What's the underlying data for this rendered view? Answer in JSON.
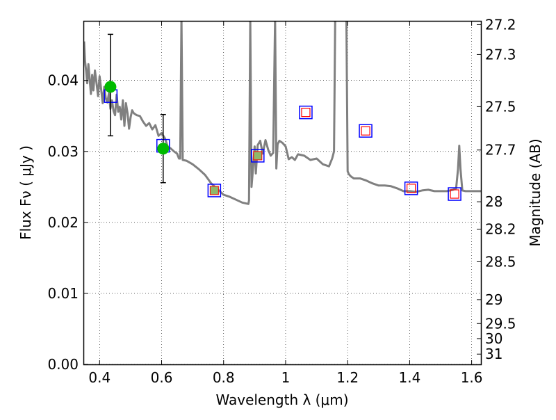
{
  "chart_data": {
    "type": "line",
    "xlabel": "Wavelength  λ (μm)",
    "ylabel": "Flux  Fν  ( μJy )",
    "y2label": "Magnitude (AB)",
    "xlim": [
      0.35,
      1.63
    ],
    "ylim": [
      0.0,
      0.0483
    ],
    "xticks": [
      {
        "value": 0.4,
        "label": "0.4"
      },
      {
        "value": 0.6,
        "label": "0.6"
      },
      {
        "value": 0.8,
        "label": "0.8"
      },
      {
        "value": 1.0,
        "label": "1"
      },
      {
        "value": 1.2,
        "label": "1.2"
      },
      {
        "value": 1.4,
        "label": "1.4"
      },
      {
        "value": 1.6,
        "label": "1.6"
      }
    ],
    "yticks": [
      {
        "value": 0.0,
        "label": "0.00"
      },
      {
        "value": 0.01,
        "label": "0.01"
      },
      {
        "value": 0.02,
        "label": "0.02"
      },
      {
        "value": 0.03,
        "label": "0.03"
      },
      {
        "value": 0.04,
        "label": "0.04"
      }
    ],
    "y2ticks": [
      {
        "value": 27.2,
        "label": "27.2"
      },
      {
        "value": 27.3,
        "label": "27.3"
      },
      {
        "value": 27.5,
        "label": "27.5"
      },
      {
        "value": 27.7,
        "label": "27.7"
      },
      {
        "value": 28.0,
        "label": "28"
      },
      {
        "value": 28.2,
        "label": "28.2"
      },
      {
        "value": 28.5,
        "label": "28.5"
      },
      {
        "value": 29.0,
        "label": "29"
      },
      {
        "value": 29.5,
        "label": "29.5"
      },
      {
        "value": 30.0,
        "label": "30"
      },
      {
        "value": 31.0,
        "label": "31"
      }
    ],
    "grid": true,
    "colors": {
      "spectrum": "#808080",
      "model_box": "#0000ff",
      "upper_box": "#ff0000",
      "observed": "#00bb00",
      "inner_fill": "#8fb86a"
    },
    "series": [
      {
        "kind": "spectrum",
        "x": [
          0.35,
          0.353,
          0.357,
          0.36,
          0.364,
          0.368,
          0.372,
          0.376,
          0.38,
          0.385,
          0.39,
          0.395,
          0.4,
          0.405,
          0.41,
          0.415,
          0.42,
          0.425,
          0.43,
          0.435,
          0.44,
          0.445,
          0.45,
          0.455,
          0.46,
          0.465,
          0.47,
          0.475,
          0.48,
          0.485,
          0.49,
          0.495,
          0.5,
          0.505,
          0.51,
          0.52,
          0.53,
          0.54,
          0.55,
          0.56,
          0.57,
          0.58,
          0.59,
          0.6,
          0.61,
          0.62,
          0.63,
          0.64,
          0.65,
          0.656,
          0.66,
          0.664,
          0.668,
          0.68,
          0.7,
          0.72,
          0.74,
          0.76,
          0.78,
          0.8,
          0.82,
          0.84,
          0.86,
          0.88,
          0.882,
          0.886,
          0.89,
          0.894,
          0.9,
          0.904,
          0.91,
          0.918,
          0.926,
          0.935,
          0.944,
          0.952,
          0.96,
          0.966,
          0.97,
          0.974,
          0.98,
          0.99,
          1.0,
          1.01,
          1.02,
          1.03,
          1.04,
          1.06,
          1.08,
          1.1,
          1.12,
          1.14,
          1.15,
          1.156,
          1.16,
          1.164,
          1.168,
          1.172,
          1.18,
          1.188,
          1.196,
          1.2,
          1.204,
          1.21,
          1.22,
          1.24,
          1.26,
          1.28,
          1.3,
          1.32,
          1.34,
          1.36,
          1.38,
          1.4,
          1.42,
          1.44,
          1.46,
          1.48,
          1.5,
          1.52,
          1.54,
          1.55,
          1.556,
          1.56,
          1.564,
          1.57,
          1.58,
          1.6,
          1.63
        ],
        "y": [
          0.0455,
          0.0428,
          0.0412,
          0.0396,
          0.0423,
          0.0402,
          0.0381,
          0.0408,
          0.0386,
          0.0414,
          0.0397,
          0.0378,
          0.0406,
          0.0388,
          0.0368,
          0.0391,
          0.0375,
          0.0369,
          0.0382,
          0.036,
          0.0372,
          0.0357,
          0.0351,
          0.038,
          0.0356,
          0.0363,
          0.0345,
          0.0372,
          0.0336,
          0.0368,
          0.0354,
          0.0332,
          0.0348,
          0.0358,
          0.0354,
          0.0351,
          0.035,
          0.0342,
          0.0336,
          0.034,
          0.0331,
          0.0337,
          0.0322,
          0.0326,
          0.0319,
          0.0307,
          0.0304,
          0.03,
          0.0297,
          0.029,
          0.029,
          0.0488,
          0.0288,
          0.0287,
          0.0282,
          0.0275,
          0.0267,
          0.0255,
          0.0247,
          0.0239,
          0.0236,
          0.0232,
          0.0228,
          0.0226,
          0.0231,
          0.0488,
          0.025,
          0.0272,
          0.0307,
          0.0269,
          0.0309,
          0.0315,
          0.0297,
          0.0316,
          0.0302,
          0.0294,
          0.0298,
          0.0488,
          0.0276,
          0.031,
          0.0315,
          0.0312,
          0.0307,
          0.0289,
          0.0292,
          0.0288,
          0.0296,
          0.0294,
          0.0288,
          0.029,
          0.0282,
          0.0279,
          0.029,
          0.03,
          0.0488,
          0.0488,
          0.0488,
          0.0488,
          0.0488,
          0.0488,
          0.0488,
          0.0272,
          0.0268,
          0.0265,
          0.0262,
          0.0262,
          0.0259,
          0.0255,
          0.0252,
          0.0252,
          0.0251,
          0.0248,
          0.0244,
          0.0244,
          0.0243,
          0.0245,
          0.0246,
          0.0244,
          0.0244,
          0.0244,
          0.0246,
          0.0248,
          0.0275,
          0.0308,
          0.0275,
          0.0245,
          0.0244,
          0.0244,
          0.0244
        ]
      },
      {
        "kind": "model-boxes",
        "x": [
          0.436,
          0.605,
          0.77,
          0.91,
          1.065,
          1.258,
          1.405,
          1.545
        ],
        "y": [
          0.0378,
          0.0308,
          0.0245,
          0.0294,
          0.0355,
          0.0329,
          0.0248,
          0.024
        ]
      },
      {
        "kind": "upper-limit-boxes",
        "x": [
          1.065,
          1.258,
          1.405,
          1.545
        ],
        "y": [
          0.0355,
          0.0329,
          0.0248,
          0.024
        ]
      },
      {
        "kind": "filled-inner-boxes",
        "x": [
          0.77,
          0.91
        ],
        "y": [
          0.0245,
          0.0294
        ]
      },
      {
        "kind": "observed-with-errors",
        "x": [
          0.435,
          0.605
        ],
        "y": [
          0.0391,
          0.0304
        ],
        "yerr_low": [
          0.0322,
          0.0256
        ],
        "yerr_high": [
          0.0465,
          0.0352
        ]
      }
    ]
  }
}
